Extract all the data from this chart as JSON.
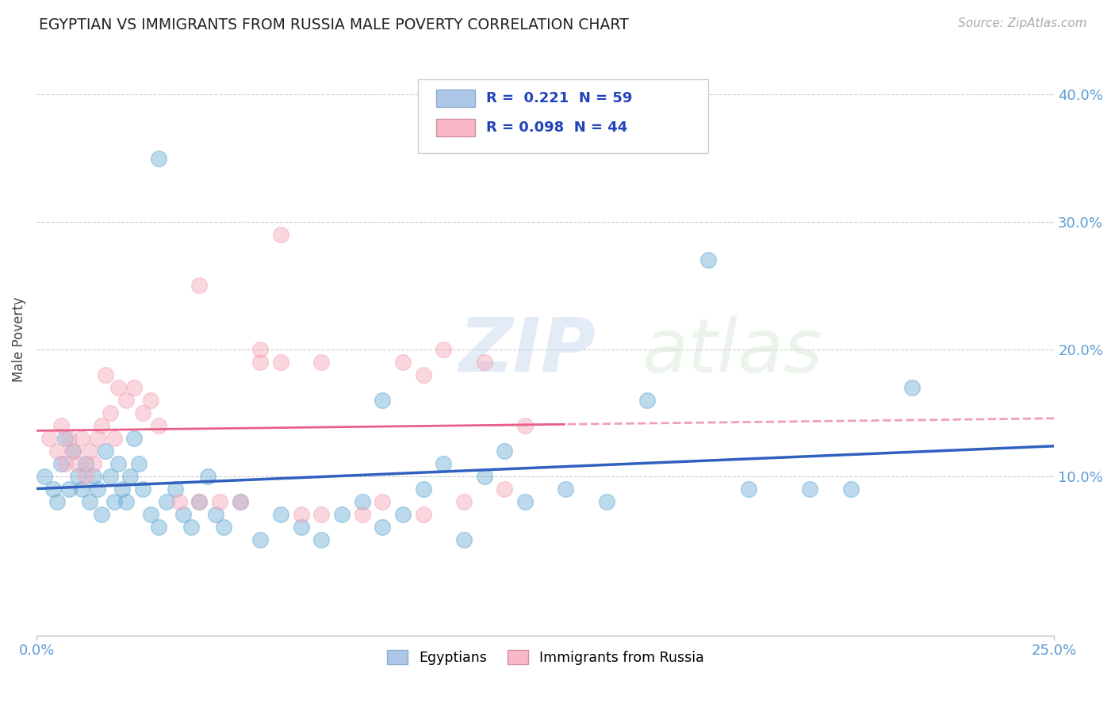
{
  "title": "EGYPTIAN VS IMMIGRANTS FROM RUSSIA MALE POVERTY CORRELATION CHART",
  "source": "Source: ZipAtlas.com",
  "ylabel": "Male Poverty",
  "watermark_text": "ZIP",
  "watermark_text2": "atlas",
  "right_yticks": [
    "10.0%",
    "20.0%",
    "30.0%",
    "40.0%"
  ],
  "right_ytick_vals": [
    0.1,
    0.2,
    0.3,
    0.4
  ],
  "xlim": [
    0.0,
    0.25
  ],
  "ylim": [
    -0.025,
    0.44
  ],
  "blue_scatter_x": [
    0.002,
    0.004,
    0.005,
    0.006,
    0.007,
    0.008,
    0.009,
    0.01,
    0.011,
    0.012,
    0.013,
    0.014,
    0.015,
    0.016,
    0.017,
    0.018,
    0.019,
    0.02,
    0.021,
    0.022,
    0.023,
    0.024,
    0.025,
    0.026,
    0.028,
    0.03,
    0.032,
    0.034,
    0.036,
    0.038,
    0.04,
    0.042,
    0.044,
    0.046,
    0.05,
    0.055,
    0.06,
    0.065,
    0.07,
    0.075,
    0.08,
    0.085,
    0.09,
    0.095,
    0.1,
    0.105,
    0.11,
    0.115,
    0.12,
    0.13,
    0.14,
    0.15,
    0.165,
    0.175,
    0.19,
    0.2,
    0.03,
    0.085,
    0.215
  ],
  "blue_scatter_y": [
    0.1,
    0.09,
    0.08,
    0.11,
    0.13,
    0.09,
    0.12,
    0.1,
    0.09,
    0.11,
    0.08,
    0.1,
    0.09,
    0.07,
    0.12,
    0.1,
    0.08,
    0.11,
    0.09,
    0.08,
    0.1,
    0.13,
    0.11,
    0.09,
    0.07,
    0.06,
    0.08,
    0.09,
    0.07,
    0.06,
    0.08,
    0.1,
    0.07,
    0.06,
    0.08,
    0.05,
    0.07,
    0.06,
    0.05,
    0.07,
    0.08,
    0.06,
    0.07,
    0.09,
    0.11,
    0.05,
    0.1,
    0.12,
    0.08,
    0.09,
    0.08,
    0.16,
    0.27,
    0.09,
    0.09,
    0.09,
    0.35,
    0.16,
    0.17
  ],
  "pink_scatter_x": [
    0.003,
    0.005,
    0.006,
    0.007,
    0.008,
    0.009,
    0.01,
    0.011,
    0.012,
    0.013,
    0.014,
    0.015,
    0.016,
    0.017,
    0.018,
    0.019,
    0.02,
    0.022,
    0.024,
    0.026,
    0.028,
    0.03,
    0.035,
    0.04,
    0.045,
    0.05,
    0.055,
    0.06,
    0.065,
    0.07,
    0.08,
    0.09,
    0.095,
    0.1,
    0.11,
    0.12,
    0.06,
    0.04,
    0.055,
    0.07,
    0.085,
    0.095,
    0.105,
    0.115
  ],
  "pink_scatter_y": [
    0.13,
    0.12,
    0.14,
    0.11,
    0.13,
    0.12,
    0.11,
    0.13,
    0.1,
    0.12,
    0.11,
    0.13,
    0.14,
    0.18,
    0.15,
    0.13,
    0.17,
    0.16,
    0.17,
    0.15,
    0.16,
    0.14,
    0.08,
    0.08,
    0.08,
    0.08,
    0.2,
    0.19,
    0.07,
    0.07,
    0.07,
    0.19,
    0.18,
    0.2,
    0.19,
    0.14,
    0.29,
    0.25,
    0.19,
    0.19,
    0.08,
    0.07,
    0.08,
    0.09
  ],
  "blue_color": "#6baed6",
  "pink_color": "#f4a7b9",
  "blue_line_color": "#3060c0",
  "pink_line_color": "#e8608a",
  "blue_legend_color": "#aec6e8",
  "pink_legend_color": "#f9b8c8",
  "background_color": "#ffffff",
  "grid_color": "#cccccc",
  "title_color": "#222222",
  "source_color": "#aaaaaa",
  "tick_color": "#5b9bd5",
  "ylabel_color": "#444444"
}
